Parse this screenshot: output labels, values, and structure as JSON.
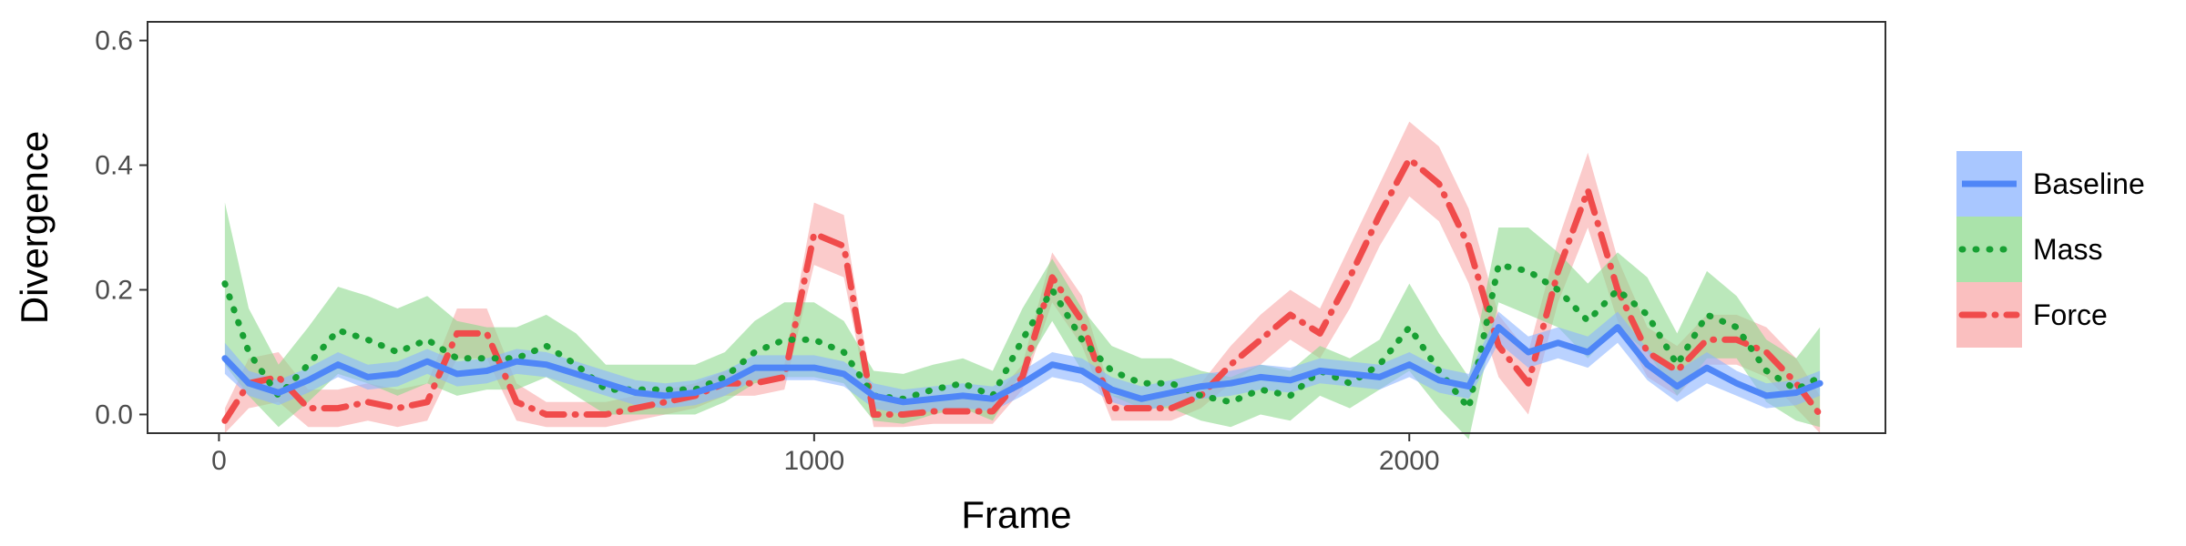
{
  "chart_data": {
    "type": "line",
    "title": "",
    "xlabel": "Frame",
    "ylabel": "Divergence",
    "xlim": [
      -120,
      2800
    ],
    "ylim": [
      -0.03,
      0.63
    ],
    "x_ticks": [
      0,
      1000,
      2000
    ],
    "y_ticks": [
      0.0,
      0.2,
      0.4,
      0.6
    ],
    "x_tick_labels": [
      "0",
      "1000",
      "2000"
    ],
    "y_tick_labels": [
      "0.0",
      "0.2",
      "0.4",
      "0.6"
    ],
    "grid": false,
    "legend_position": "right",
    "series": [
      {
        "name": "Baseline",
        "color": "#4f86f7",
        "band_color": "#8cb4ff",
        "line_style": "solid",
        "points": [
          [
            10,
            0.09
          ],
          [
            50,
            0.05
          ],
          [
            100,
            0.035
          ],
          [
            150,
            0.055
          ],
          [
            200,
            0.08
          ],
          [
            250,
            0.06
          ],
          [
            300,
            0.065
          ],
          [
            350,
            0.085
          ],
          [
            400,
            0.065
          ],
          [
            450,
            0.07
          ],
          [
            500,
            0.085
          ],
          [
            550,
            0.08
          ],
          [
            600,
            0.065
          ],
          [
            650,
            0.05
          ],
          [
            700,
            0.035
          ],
          [
            750,
            0.03
          ],
          [
            800,
            0.035
          ],
          [
            850,
            0.05
          ],
          [
            900,
            0.075
          ],
          [
            950,
            0.075
          ],
          [
            1000,
            0.075
          ],
          [
            1050,
            0.065
          ],
          [
            1100,
            0.03
          ],
          [
            1150,
            0.02
          ],
          [
            1200,
            0.025
          ],
          [
            1250,
            0.03
          ],
          [
            1300,
            0.025
          ],
          [
            1350,
            0.05
          ],
          [
            1400,
            0.08
          ],
          [
            1450,
            0.07
          ],
          [
            1500,
            0.04
          ],
          [
            1550,
            0.025
          ],
          [
            1600,
            0.035
          ],
          [
            1650,
            0.045
          ],
          [
            1700,
            0.05
          ],
          [
            1750,
            0.06
          ],
          [
            1800,
            0.055
          ],
          [
            1850,
            0.07
          ],
          [
            1900,
            0.065
          ],
          [
            1950,
            0.06
          ],
          [
            2000,
            0.08
          ],
          [
            2050,
            0.055
          ],
          [
            2100,
            0.045
          ],
          [
            2150,
            0.14
          ],
          [
            2200,
            0.1
          ],
          [
            2250,
            0.115
          ],
          [
            2300,
            0.1
          ],
          [
            2350,
            0.14
          ],
          [
            2400,
            0.08
          ],
          [
            2450,
            0.045
          ],
          [
            2500,
            0.075
          ],
          [
            2550,
            0.05
          ],
          [
            2600,
            0.03
          ],
          [
            2650,
            0.035
          ],
          [
            2690,
            0.05
          ]
        ],
        "band": [
          0.025,
          0.02,
          0.02,
          0.02,
          0.02,
          0.02,
          0.02,
          0.02,
          0.02,
          0.02,
          0.02,
          0.02,
          0.02,
          0.02,
          0.02,
          0.02,
          0.02,
          0.02,
          0.02,
          0.02,
          0.02,
          0.02,
          0.02,
          0.02,
          0.02,
          0.02,
          0.02,
          0.02,
          0.02,
          0.02,
          0.02,
          0.02,
          0.02,
          0.02,
          0.02,
          0.02,
          0.02,
          0.02,
          0.02,
          0.02,
          0.02,
          0.02,
          0.02,
          0.025,
          0.025,
          0.025,
          0.025,
          0.025,
          0.025,
          0.025,
          0.025,
          0.02,
          0.02,
          0.02,
          0.02
        ]
      },
      {
        "name": "Mass",
        "color": "#18a033",
        "band_color": "#8ed98e",
        "line_style": "dotted",
        "points": [
          [
            10,
            0.21
          ],
          [
            50,
            0.1
          ],
          [
            100,
            0.03
          ],
          [
            150,
            0.08
          ],
          [
            200,
            0.135
          ],
          [
            250,
            0.12
          ],
          [
            300,
            0.1
          ],
          [
            350,
            0.12
          ],
          [
            400,
            0.09
          ],
          [
            450,
            0.09
          ],
          [
            500,
            0.09
          ],
          [
            550,
            0.11
          ],
          [
            600,
            0.08
          ],
          [
            650,
            0.04
          ],
          [
            700,
            0.04
          ],
          [
            750,
            0.04
          ],
          [
            800,
            0.04
          ],
          [
            850,
            0.06
          ],
          [
            900,
            0.1
          ],
          [
            950,
            0.12
          ],
          [
            1000,
            0.12
          ],
          [
            1050,
            0.1
          ],
          [
            1100,
            0.03
          ],
          [
            1150,
            0.025
          ],
          [
            1200,
            0.04
          ],
          [
            1250,
            0.05
          ],
          [
            1300,
            0.03
          ],
          [
            1350,
            0.12
          ],
          [
            1400,
            0.2
          ],
          [
            1450,
            0.12
          ],
          [
            1500,
            0.07
          ],
          [
            1550,
            0.05
          ],
          [
            1600,
            0.05
          ],
          [
            1650,
            0.03
          ],
          [
            1700,
            0.02
          ],
          [
            1750,
            0.04
          ],
          [
            1800,
            0.03
          ],
          [
            1850,
            0.07
          ],
          [
            1900,
            0.05
          ],
          [
            1950,
            0.08
          ],
          [
            2000,
            0.14
          ],
          [
            2050,
            0.07
          ],
          [
            2100,
            0.01
          ],
          [
            2150,
            0.24
          ],
          [
            2200,
            0.23
          ],
          [
            2250,
            0.2
          ],
          [
            2300,
            0.15
          ],
          [
            2350,
            0.2
          ],
          [
            2400,
            0.16
          ],
          [
            2450,
            0.08
          ],
          [
            2500,
            0.16
          ],
          [
            2550,
            0.14
          ],
          [
            2600,
            0.07
          ],
          [
            2650,
            0.04
          ],
          [
            2690,
            0.06
          ]
        ],
        "band": [
          0.13,
          0.07,
          0.05,
          0.06,
          0.07,
          0.07,
          0.07,
          0.07,
          0.06,
          0.05,
          0.05,
          0.05,
          0.05,
          0.04,
          0.04,
          0.04,
          0.04,
          0.04,
          0.05,
          0.06,
          0.06,
          0.05,
          0.04,
          0.04,
          0.04,
          0.04,
          0.04,
          0.05,
          0.05,
          0.05,
          0.04,
          0.04,
          0.04,
          0.04,
          0.04,
          0.04,
          0.04,
          0.04,
          0.04,
          0.04,
          0.07,
          0.06,
          0.05,
          0.06,
          0.07,
          0.06,
          0.06,
          0.06,
          0.06,
          0.05,
          0.07,
          0.05,
          0.05,
          0.05,
          0.08
        ]
      },
      {
        "name": "Force",
        "color": "#f04b4b",
        "band_color": "#f8a9a9",
        "line_style": "dashdot",
        "points": [
          [
            10,
            -0.01
          ],
          [
            50,
            0.05
          ],
          [
            100,
            0.06
          ],
          [
            150,
            0.01
          ],
          [
            200,
            0.01
          ],
          [
            250,
            0.02
          ],
          [
            300,
            0.01
          ],
          [
            350,
            0.02
          ],
          [
            400,
            0.13
          ],
          [
            450,
            0.13
          ],
          [
            500,
            0.02
          ],
          [
            550,
            0.0
          ],
          [
            600,
            0.0
          ],
          [
            650,
            0.0
          ],
          [
            700,
            0.01
          ],
          [
            750,
            0.02
          ],
          [
            800,
            0.03
          ],
          [
            850,
            0.05
          ],
          [
            900,
            0.05
          ],
          [
            950,
            0.06
          ],
          [
            1000,
            0.29
          ],
          [
            1050,
            0.27
          ],
          [
            1100,
            0.0
          ],
          [
            1150,
            0.0
          ],
          [
            1200,
            0.005
          ],
          [
            1250,
            0.005
          ],
          [
            1300,
            0.005
          ],
          [
            1350,
            0.06
          ],
          [
            1400,
            0.22
          ],
          [
            1450,
            0.15
          ],
          [
            1500,
            0.01
          ],
          [
            1550,
            0.01
          ],
          [
            1600,
            0.01
          ],
          [
            1650,
            0.03
          ],
          [
            1700,
            0.08
          ],
          [
            1750,
            0.12
          ],
          [
            1800,
            0.16
          ],
          [
            1850,
            0.13
          ],
          [
            1900,
            0.22
          ],
          [
            1950,
            0.32
          ],
          [
            2000,
            0.41
          ],
          [
            2050,
            0.37
          ],
          [
            2100,
            0.27
          ],
          [
            2150,
            0.11
          ],
          [
            2200,
            0.05
          ],
          [
            2250,
            0.23
          ],
          [
            2300,
            0.36
          ],
          [
            2350,
            0.2
          ],
          [
            2400,
            0.1
          ],
          [
            2450,
            0.07
          ],
          [
            2500,
            0.12
          ],
          [
            2550,
            0.12
          ],
          [
            2600,
            0.1
          ],
          [
            2650,
            0.05
          ],
          [
            2690,
            0.0
          ]
        ],
        "band": [
          0.02,
          0.04,
          0.04,
          0.03,
          0.03,
          0.03,
          0.03,
          0.03,
          0.04,
          0.04,
          0.03,
          0.02,
          0.02,
          0.02,
          0.02,
          0.02,
          0.02,
          0.02,
          0.02,
          0.02,
          0.05,
          0.05,
          0.02,
          0.02,
          0.02,
          0.02,
          0.02,
          0.02,
          0.04,
          0.04,
          0.02,
          0.02,
          0.02,
          0.02,
          0.03,
          0.04,
          0.04,
          0.04,
          0.05,
          0.05,
          0.06,
          0.06,
          0.06,
          0.05,
          0.05,
          0.05,
          0.06,
          0.05,
          0.04,
          0.04,
          0.04,
          0.04,
          0.04,
          0.04,
          0.03
        ]
      }
    ]
  }
}
